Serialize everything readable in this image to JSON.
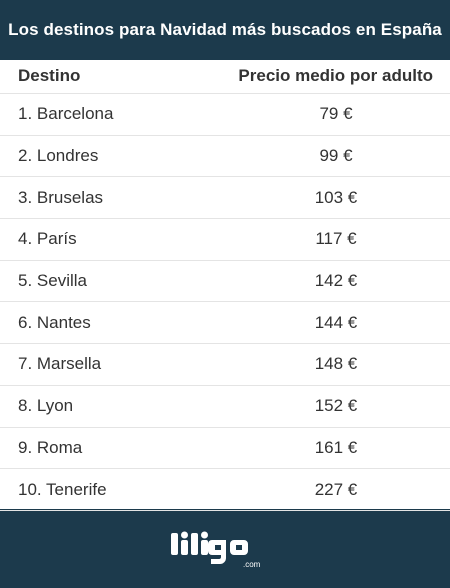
{
  "title": "Los destinos para Navidad más buscados en España",
  "table": {
    "headers": {
      "destination": "Destino",
      "price": "Precio medio por adulto"
    },
    "rows": [
      {
        "destination": "1. Barcelona",
        "price": "79 €"
      },
      {
        "destination": "2. Londres",
        "price": "99 €"
      },
      {
        "destination": "3. Bruselas",
        "price": "103 €"
      },
      {
        "destination": "4. París",
        "price": "117 €"
      },
      {
        "destination": "5. Sevilla",
        "price": "142 €"
      },
      {
        "destination": "6. Nantes",
        "price": "144 €"
      },
      {
        "destination": "7. Marsella",
        "price": "148 €"
      },
      {
        "destination": "8. Lyon",
        "price": "152 €"
      },
      {
        "destination": "9. Roma",
        "price": "161 €"
      },
      {
        "destination": "10. Tenerife",
        "price": "227 €"
      }
    ]
  },
  "logo": {
    "name": "liligo",
    "suffix": ".com"
  },
  "colors": {
    "brand_dark": "#1c3a4c",
    "row_border": "#e4e4e4",
    "text": "#333333"
  }
}
